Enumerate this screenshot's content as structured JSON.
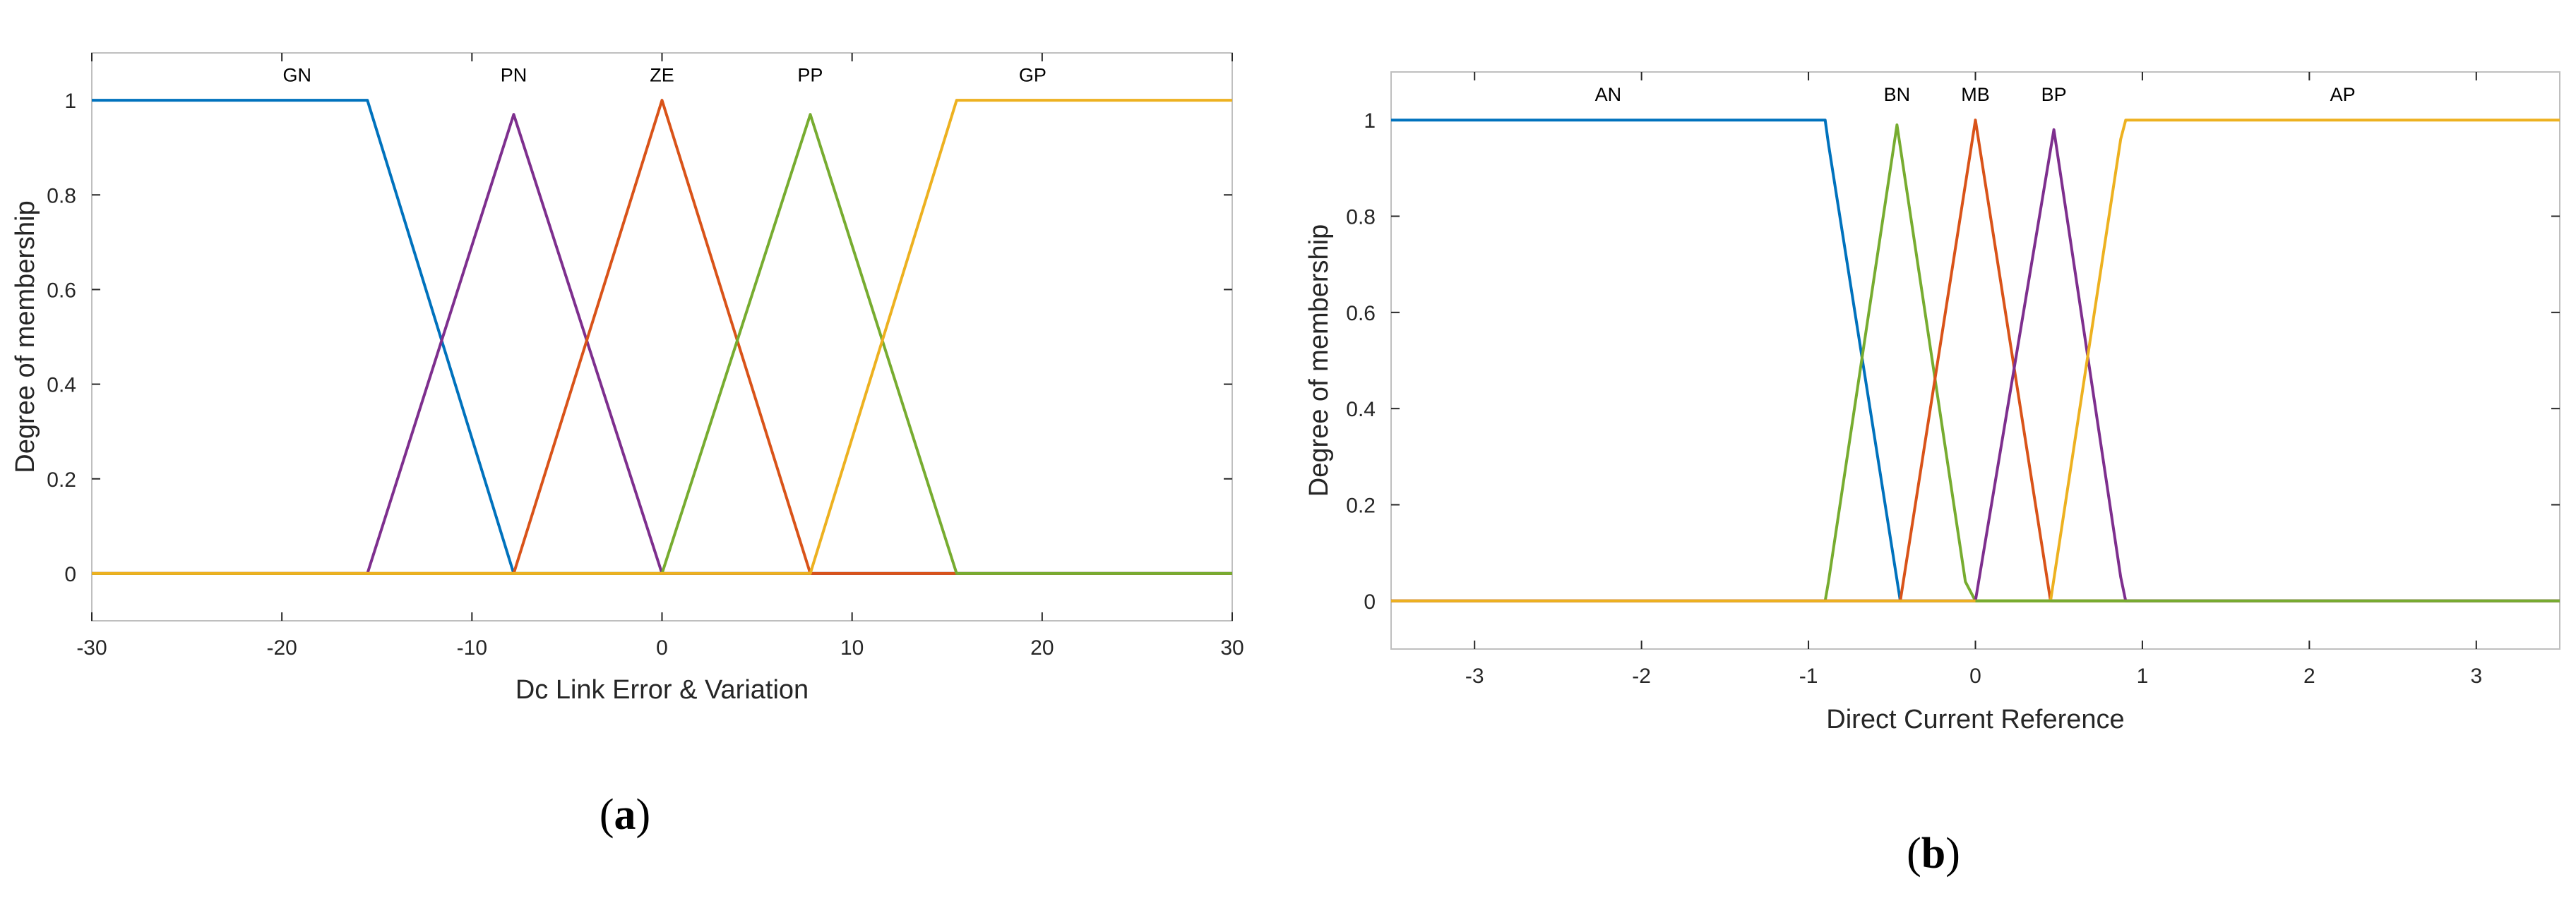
{
  "colors": {
    "blue": "#0072BD",
    "orange": "#D95319",
    "yellow": "#EDB120",
    "purple": "#7E2F8E",
    "green": "#77AC30",
    "axis": "#262626",
    "tick_border": "#BFBFBF"
  },
  "captions": {
    "a": {
      "open": "(",
      "letter": "a",
      "close": ")"
    },
    "b": {
      "open": "(",
      "letter": "b",
      "close": ")"
    }
  },
  "chart_data": [
    {
      "type": "line",
      "xlabel": "Dc Link Error & Variation",
      "ylabel": "Degree of membership",
      "xlim": [
        -30,
        30
      ],
      "ylim": [
        -0.1,
        1.1
      ],
      "xticks": [
        -30,
        -20,
        -10,
        0,
        10,
        20,
        30
      ],
      "xtick_labels": [
        "-30",
        "-20",
        "-10",
        "0",
        "10",
        "20",
        "30"
      ],
      "yticks": [
        0,
        0.2,
        0.4,
        0.6,
        0.8,
        1
      ],
      "ytick_labels": [
        "0",
        "0.2",
        "0.4",
        "0.6",
        "0.8",
        "1"
      ],
      "grid": false,
      "series": [
        {
          "name": "GN",
          "color": "blue",
          "x": [
            -30,
            -15.5,
            -7.8,
            30
          ],
          "y": [
            1,
            1,
            0,
            0
          ],
          "label_x": -19.2,
          "label_y": 1.04
        },
        {
          "name": "PN",
          "color": "purple",
          "x": [
            -30,
            -15.5,
            -7.8,
            0,
            15.5,
            30
          ],
          "y": [
            0,
            0,
            0.97,
            0,
            0,
            0
          ],
          "label_x": -7.8,
          "label_y": 1.04
        },
        {
          "name": "ZE",
          "color": "orange",
          "x": [
            -30,
            -7.8,
            0,
            7.8,
            30
          ],
          "y": [
            0,
            0,
            1,
            0,
            0
          ],
          "label_x": 0,
          "label_y": 1.04
        },
        {
          "name": "PP",
          "color": "green",
          "x": [
            -30,
            0,
            7.8,
            15.5,
            30
          ],
          "y": [
            0,
            0,
            0.97,
            0,
            0
          ],
          "label_x": 7.8,
          "label_y": 1.04
        },
        {
          "name": "GP",
          "color": "yellow",
          "x": [
            -30,
            7.8,
            15.5,
            30
          ],
          "y": [
            0,
            0,
            1,
            1
          ],
          "label_x": 19.5,
          "label_y": 1.04
        }
      ]
    },
    {
      "type": "line",
      "xlabel": "Direct Current Reference",
      "ylabel": "Degree of membership",
      "xlim": [
        -3.5,
        3.5
      ],
      "ylim": [
        -0.1,
        1.1
      ],
      "xticks": [
        -3,
        -2,
        -1,
        0,
        1,
        2,
        3
      ],
      "xtick_labels": [
        "-3",
        "-2",
        "-1",
        "0",
        "1",
        "2",
        "3"
      ],
      "yticks": [
        0,
        0.2,
        0.4,
        0.6,
        0.8,
        1
      ],
      "ytick_labels": [
        "0",
        "0.2",
        "0.4",
        "0.6",
        "0.8",
        "1"
      ],
      "grid": false,
      "series": [
        {
          "name": "AN",
          "color": "blue",
          "x": [
            -3.5,
            -0.9,
            -0.88,
            -0.45,
            3.5
          ],
          "y": [
            1,
            1,
            0.95,
            0,
            0
          ],
          "label_x": -2.2,
          "label_y": 1.04
        },
        {
          "name": "BN",
          "color": "green",
          "x": [
            -3.5,
            -0.9,
            -0.88,
            -0.47,
            -0.06,
            0,
            3.5
          ],
          "y": [
            0,
            0,
            0.04,
            0.99,
            0.04,
            0,
            0
          ],
          "label_x": -0.47,
          "label_y": 1.04
        },
        {
          "name": "MB",
          "color": "orange",
          "x": [
            -3.5,
            -0.45,
            0,
            0.45,
            3.5
          ],
          "y": [
            0,
            0,
            1,
            0,
            0
          ],
          "label_x": 0,
          "label_y": 1.04
        },
        {
          "name": "BP",
          "color": "purple",
          "x": [
            -3.5,
            -0.9,
            0,
            0.47,
            0.87,
            0.9,
            3.5
          ],
          "y": [
            0,
            0,
            0,
            0.98,
            0.05,
            0,
            0
          ],
          "label_x": 0.47,
          "label_y": 1.04
        },
        {
          "name": "AP",
          "color": "yellow",
          "x": [
            -3.5,
            0.45,
            0.87,
            0.9,
            3.5
          ],
          "y": [
            0,
            0,
            0.96,
            1,
            1
          ],
          "label_x": 2.2,
          "label_y": 1.04
        },
        {
          "name": "",
          "color": "green",
          "x": [
            0,
            3.5
          ],
          "y": [
            0,
            0
          ],
          "label_x": null,
          "label_y": null
        }
      ]
    }
  ]
}
